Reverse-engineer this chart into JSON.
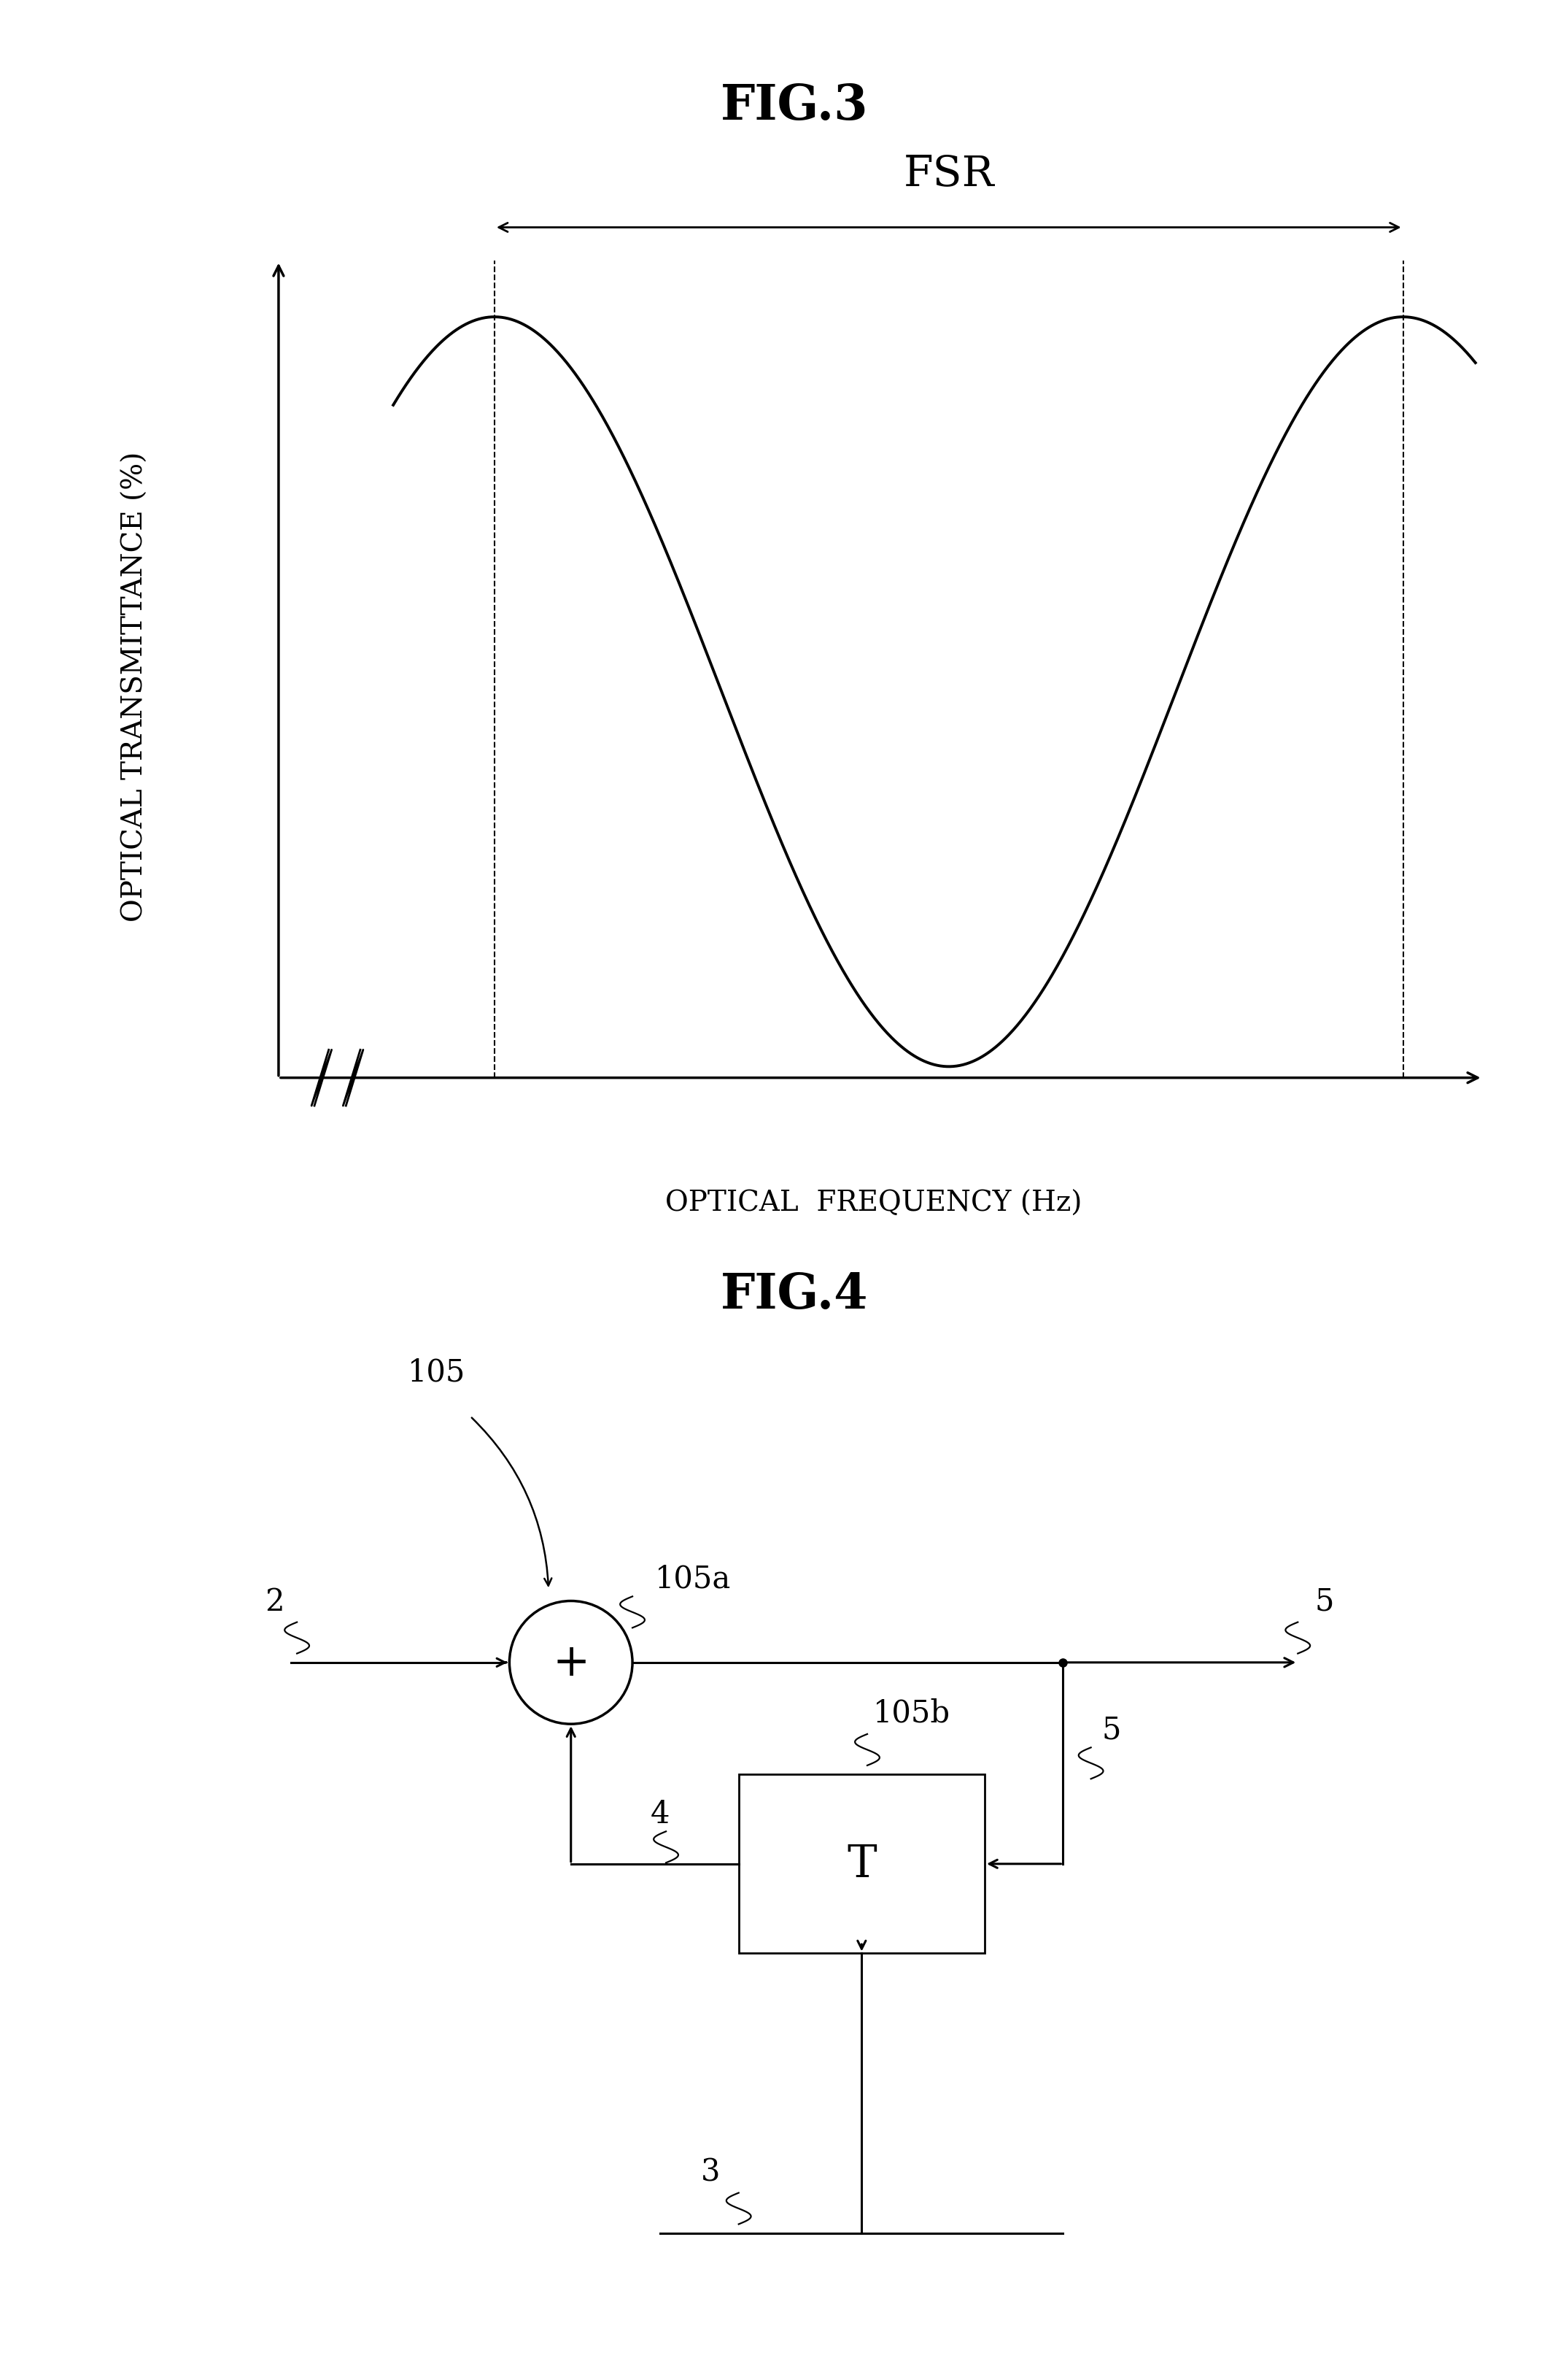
{
  "fig3_title": "FIG.3",
  "fig4_title": "FIG.4",
  "xlabel": "OPTICAL  FREQUENCY (Hz)",
  "ylabel": "OPTICAL TRANSMITTANCE (%)",
  "fsr_label": "FSR",
  "fig4_labels": {
    "sum_node": "+",
    "delay_box": "T",
    "label_105": "105",
    "label_105a": "105a",
    "label_105b": "105b",
    "label_2": "2",
    "label_3": "3",
    "label_4": "4",
    "label_5_right": "5",
    "label_5_branch": "5"
  },
  "bg_color": "#ffffff",
  "line_color": "#000000",
  "title_fontsize": 48,
  "label_fontsize": 30,
  "axis_label_fontsize": 28,
  "annotation_fontsize": 30
}
